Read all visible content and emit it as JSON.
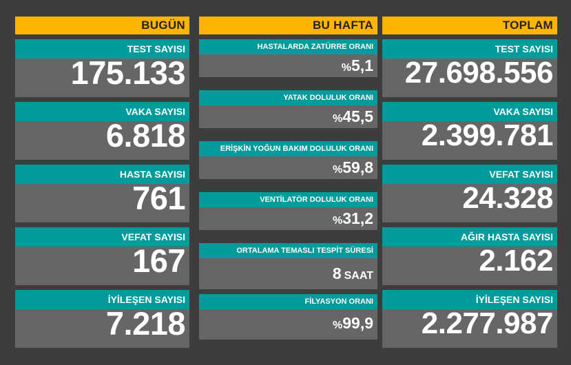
{
  "columns": {
    "today": {
      "header": "BUGÜN",
      "cards": [
        {
          "label": "TEST SAYISI",
          "value": "175.133"
        },
        {
          "label": "VAKA SAYISI",
          "value": "6.818"
        },
        {
          "label": "HASTA SAYISI",
          "value": "761"
        },
        {
          "label": "VEFAT SAYISI",
          "value": "167"
        },
        {
          "label": "İYİLEŞEN SAYISI",
          "value": "7.218"
        }
      ]
    },
    "week": {
      "header": "BU HAFTA",
      "cards": [
        {
          "label": "HASTALARDA ZATÜRRE ORANI",
          "prefix": "%",
          "value": "5,1"
        },
        {
          "label": "YATAK DOLULUK ORANI",
          "prefix": "%",
          "value": "45,5"
        },
        {
          "label": "ERİŞKİN YOĞUN BAKIM DOLULUK ORANI",
          "prefix": "%",
          "value": "59,8"
        },
        {
          "label": "VENTİLATÖR DOLULUK ORANI",
          "prefix": "%",
          "value": "31,2"
        },
        {
          "label": "ORTALAMA TEMASLI TESPİT SÜRESİ",
          "value": "8",
          "unit": "SAAT"
        },
        {
          "label": "FİLYASYON ORANI",
          "prefix": "%",
          "value": "99,9"
        }
      ]
    },
    "total": {
      "header": "TOPLAM",
      "cards": [
        {
          "label": "TEST SAYISI",
          "value": "27.698.556"
        },
        {
          "label": "VAKA SAYISI",
          "value": "2.399.781"
        },
        {
          "label": "VEFAT SAYISI",
          "value": "24.328"
        },
        {
          "label": "AĞIR HASTA SAYISI",
          "value": "2.162"
        },
        {
          "label": "İYİLEŞEN SAYISI",
          "value": "2.277.987"
        }
      ]
    }
  },
  "colors": {
    "background": "#3d3d3d",
    "header": "#ffb400",
    "label": "#009b9b",
    "card": "#666666",
    "text": "#ffffff"
  }
}
